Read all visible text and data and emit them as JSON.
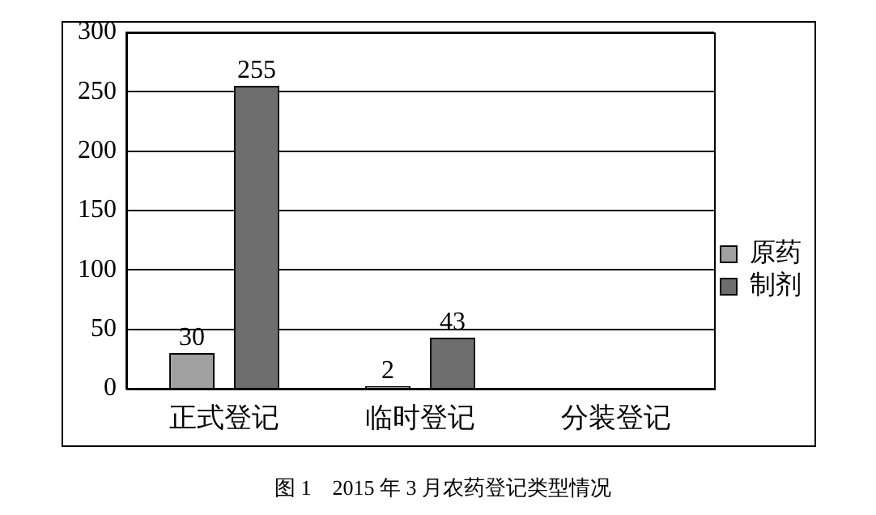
{
  "chart_data": {
    "type": "bar",
    "title": "图 1　2015 年 3 月农药登记类型情况",
    "categories": [
      "正式登记",
      "临时登记",
      "分装登记"
    ],
    "series": [
      {
        "name": "原药",
        "color": "#a0a0a0",
        "values": [
          30,
          2,
          null
        ]
      },
      {
        "name": "制剂",
        "color": "#6e6e6e",
        "values": [
          255,
          43,
          null
        ]
      }
    ],
    "ylim": [
      0,
      300
    ],
    "yticks": [
      0,
      50,
      100,
      150,
      200,
      250,
      300
    ],
    "grid": "y",
    "legend": "right",
    "data_labels": true
  }
}
